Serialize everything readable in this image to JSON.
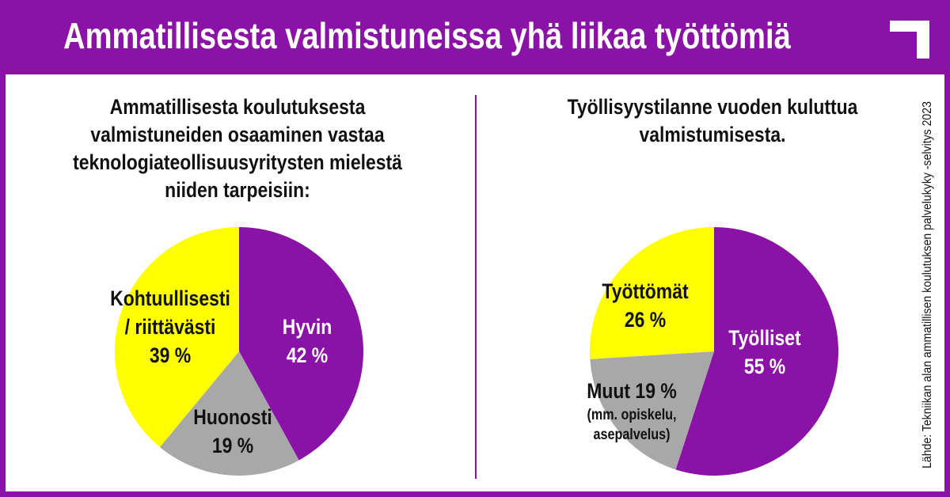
{
  "title": "Ammatillisesta valmistuneissa yhä liikaa työttömiä",
  "source": "Lähde: Tekniikan alan ammatillisen koulutuksen palvelukyky -selvitys 2023",
  "colors": {
    "purple": "#8a12a6",
    "yellow": "#ffff00",
    "gray": "#a8a8a8"
  },
  "chart_data": [
    {
      "type": "pie",
      "title": "Ammatillisesta koulutuksesta valmistuneiden osaaminen vastaa teknologiateollisuusyritysten mielestä niiden tarpeisiin:",
      "slices": [
        {
          "label": "Hyvin",
          "value": 42,
          "value_text": "42 %",
          "color": "#8a12a6"
        },
        {
          "label": "Huonosti",
          "value": 19,
          "value_text": "19 %",
          "color": "#a8a8a8"
        },
        {
          "label": "Kohtuullisesti / riittävästi",
          "line1": "Kohtuullisesti",
          "line2": "/ riittävästi",
          "value": 39,
          "value_text": "39 %",
          "color": "#ffff00"
        }
      ]
    },
    {
      "type": "pie",
      "title": "Työllisyystilanne vuoden kuluttua valmistumisesta.",
      "slices": [
        {
          "label": "Työlliset",
          "value": 55,
          "value_text": "55 %",
          "color": "#8a12a6"
        },
        {
          "label": "Muut 19 %",
          "note1": "(mm. opiskelu,",
          "note2": "asepalvelus)",
          "value": 19,
          "value_text": "19 %",
          "color": "#a8a8a8"
        },
        {
          "label": "Työttömät",
          "value": 26,
          "value_text": "26 %",
          "color": "#ffff00"
        }
      ]
    }
  ]
}
